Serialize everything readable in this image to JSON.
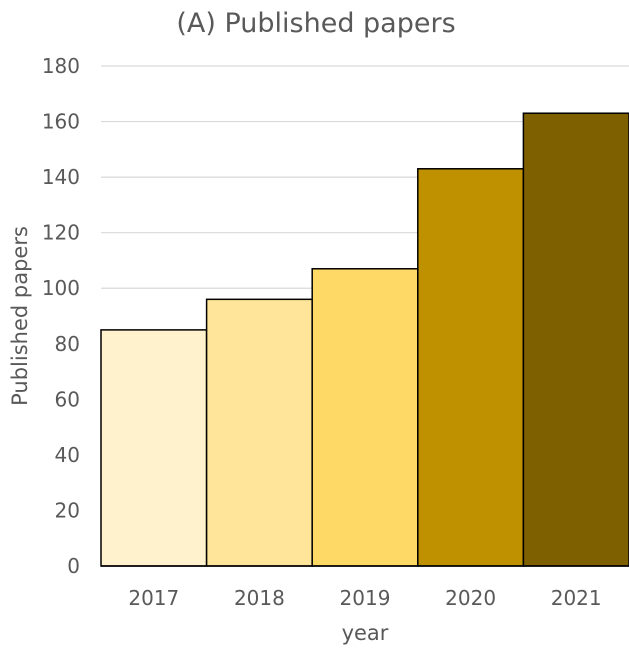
{
  "chart_data": {
    "type": "bar",
    "title": "(A) Published papers",
    "xlabel": "year",
    "ylabel": "Published papers",
    "categories": [
      "2017",
      "2018",
      "2019",
      "2020",
      "2021"
    ],
    "values": [
      85,
      96,
      107,
      143,
      163
    ],
    "colors": [
      "#FFF2CC",
      "#FFE599",
      "#FFD966",
      "#BF9000",
      "#7F6000"
    ],
    "ylim": [
      0,
      180
    ],
    "yticks": [
      "0",
      "20",
      "40",
      "60",
      "80",
      "100",
      "120",
      "140",
      "160",
      "180"
    ],
    "grid": true,
    "legend": "none"
  }
}
